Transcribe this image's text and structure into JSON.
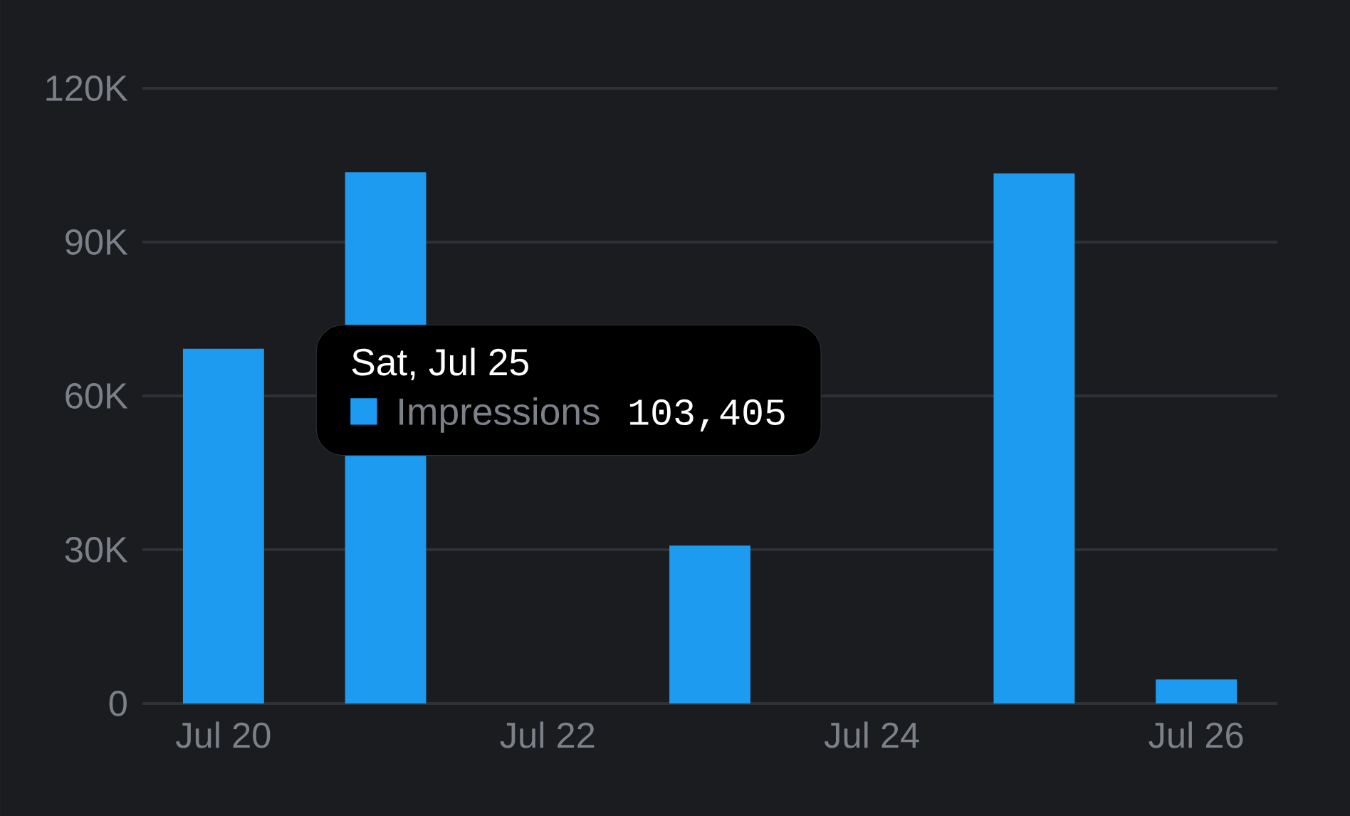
{
  "chart_data": {
    "type": "bar",
    "categories": [
      "Jul 20",
      null,
      "Jul 22",
      null,
      "Jul 24",
      null,
      "Jul 26"
    ],
    "series": [
      {
        "name": "Impressions",
        "color": "#1d9bf0",
        "values": [
          69200,
          103600,
          null,
          30800,
          null,
          103405,
          4700
        ]
      }
    ],
    "annotations": [
      "Sat, Jul 25",
      "103,405"
    ],
    "ylim": [
      0,
      120000
    ],
    "yticks": [
      0,
      {
        "value": 30000,
        "label": "30K"
      },
      {
        "value": 60000,
        "label": "60K"
      },
      {
        "value": 90000,
        "label": "90K"
      },
      {
        "value": 120000,
        "label": "120K"
      }
    ],
    "grid": "y"
  }
}
